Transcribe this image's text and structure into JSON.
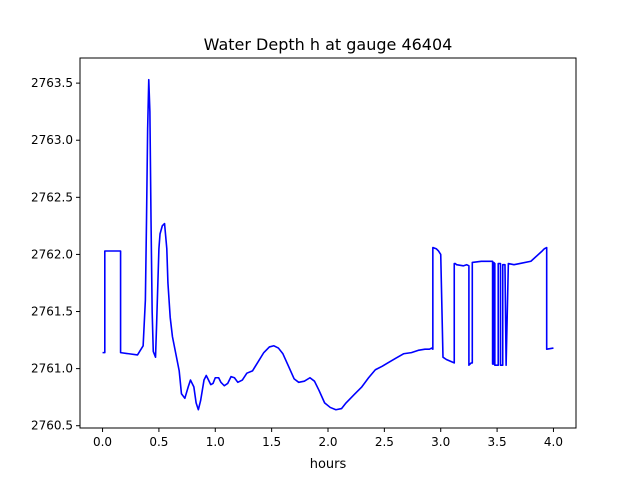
{
  "chart_data": {
    "type": "line",
    "title": "Water Depth h at gauge 46404",
    "xlabel": "hours",
    "ylabel": "",
    "xlim": [
      -0.2,
      4.2
    ],
    "ylim": [
      2760.48,
      2763.72
    ],
    "xticks": [
      0.0,
      0.5,
      1.0,
      1.5,
      2.0,
      2.5,
      3.0,
      3.5,
      4.0
    ],
    "xtick_labels": [
      "0.0",
      "0.5",
      "1.0",
      "1.5",
      "2.0",
      "2.5",
      "3.0",
      "3.5",
      "4.0"
    ],
    "yticks": [
      2760.5,
      2761.0,
      2761.5,
      2762.0,
      2762.5,
      2763.0,
      2763.5
    ],
    "ytick_labels": [
      "2760.5",
      "2761.0",
      "2761.5",
      "2762.0",
      "2762.5",
      "2763.0",
      "2763.5"
    ],
    "grid": false,
    "series": [
      {
        "color": "#0000ff",
        "x": [
          0.0,
          0.02,
          0.02,
          0.16,
          0.16,
          0.31,
          0.36,
          0.38,
          0.39,
          0.4,
          0.41,
          0.42,
          0.43,
          0.44,
          0.45,
          0.47,
          0.48,
          0.5,
          0.51,
          0.53,
          0.55,
          0.57,
          0.58,
          0.6,
          0.62,
          0.65,
          0.68,
          0.7,
          0.73,
          0.76,
          0.78,
          0.81,
          0.83,
          0.85,
          0.87,
          0.9,
          0.92,
          0.94,
          0.96,
          0.98,
          1.0,
          1.03,
          1.05,
          1.08,
          1.11,
          1.14,
          1.17,
          1.2,
          1.24,
          1.28,
          1.33,
          1.38,
          1.43,
          1.48,
          1.52,
          1.56,
          1.6,
          1.65,
          1.7,
          1.74,
          1.79,
          1.84,
          1.88,
          1.92,
          1.97,
          2.02,
          2.07,
          2.12,
          2.16,
          2.2,
          2.24,
          2.3,
          2.36,
          2.42,
          2.48,
          2.53,
          2.6,
          2.67,
          2.74,
          2.8,
          2.86,
          2.9,
          2.92,
          2.93,
          2.93,
          2.96,
          2.98,
          3.0,
          3.02,
          3.05,
          3.12,
          3.12,
          3.13,
          3.14,
          3.2,
          3.23,
          3.25,
          3.25,
          3.27,
          3.28,
          3.28,
          3.36,
          3.4,
          3.44,
          3.46,
          3.46,
          3.47,
          3.47,
          3.48,
          3.48,
          3.51,
          3.51,
          3.53,
          3.53,
          3.55,
          3.55,
          3.57,
          3.58,
          3.58,
          3.6,
          3.65,
          3.7,
          3.8,
          3.9,
          3.92,
          3.94,
          3.94,
          4.0
        ],
        "y": [
          2761.14,
          2761.14,
          2762.03,
          2762.03,
          2761.14,
          2761.12,
          2761.2,
          2761.6,
          2762.3,
          2763.1,
          2763.53,
          2763.25,
          2762.3,
          2761.5,
          2761.15,
          2761.1,
          2761.4,
          2762.05,
          2762.18,
          2762.25,
          2762.27,
          2762.05,
          2761.75,
          2761.45,
          2761.28,
          2761.13,
          2760.98,
          2760.78,
          2760.74,
          2760.84,
          2760.9,
          2760.84,
          2760.7,
          2760.64,
          2760.72,
          2760.9,
          2760.94,
          2760.9,
          2760.86,
          2760.87,
          2760.92,
          2760.92,
          2760.88,
          2760.85,
          2760.87,
          2760.93,
          2760.92,
          2760.88,
          2760.9,
          2760.96,
          2760.98,
          2761.06,
          2761.14,
          2761.19,
          2761.2,
          2761.18,
          2761.13,
          2761.02,
          2760.91,
          2760.88,
          2760.89,
          2760.92,
          2760.89,
          2760.81,
          2760.7,
          2760.66,
          2760.64,
          2760.65,
          2760.7,
          2760.74,
          2760.78,
          2760.84,
          2760.92,
          2760.99,
          2761.02,
          2761.05,
          2761.09,
          2761.13,
          2761.14,
          2761.16,
          2761.17,
          2761.17,
          2761.18,
          2761.17,
          2762.06,
          2762.05,
          2762.03,
          2762.0,
          2761.1,
          2761.08,
          2761.05,
          2761.92,
          2761.92,
          2761.91,
          2761.9,
          2761.91,
          2761.9,
          2761.03,
          2761.05,
          2761.05,
          2761.93,
          2761.94,
          2761.94,
          2761.94,
          2761.94,
          2761.04,
          2761.04,
          2761.93,
          2761.92,
          2761.03,
          2761.03,
          2761.92,
          2761.92,
          2761.03,
          2761.03,
          2761.91,
          2761.91,
          2761.03,
          2761.03,
          2761.92,
          2761.91,
          2761.92,
          2761.94,
          2762.03,
          2762.05,
          2762.06,
          2761.17,
          2761.18
        ]
      }
    ]
  }
}
